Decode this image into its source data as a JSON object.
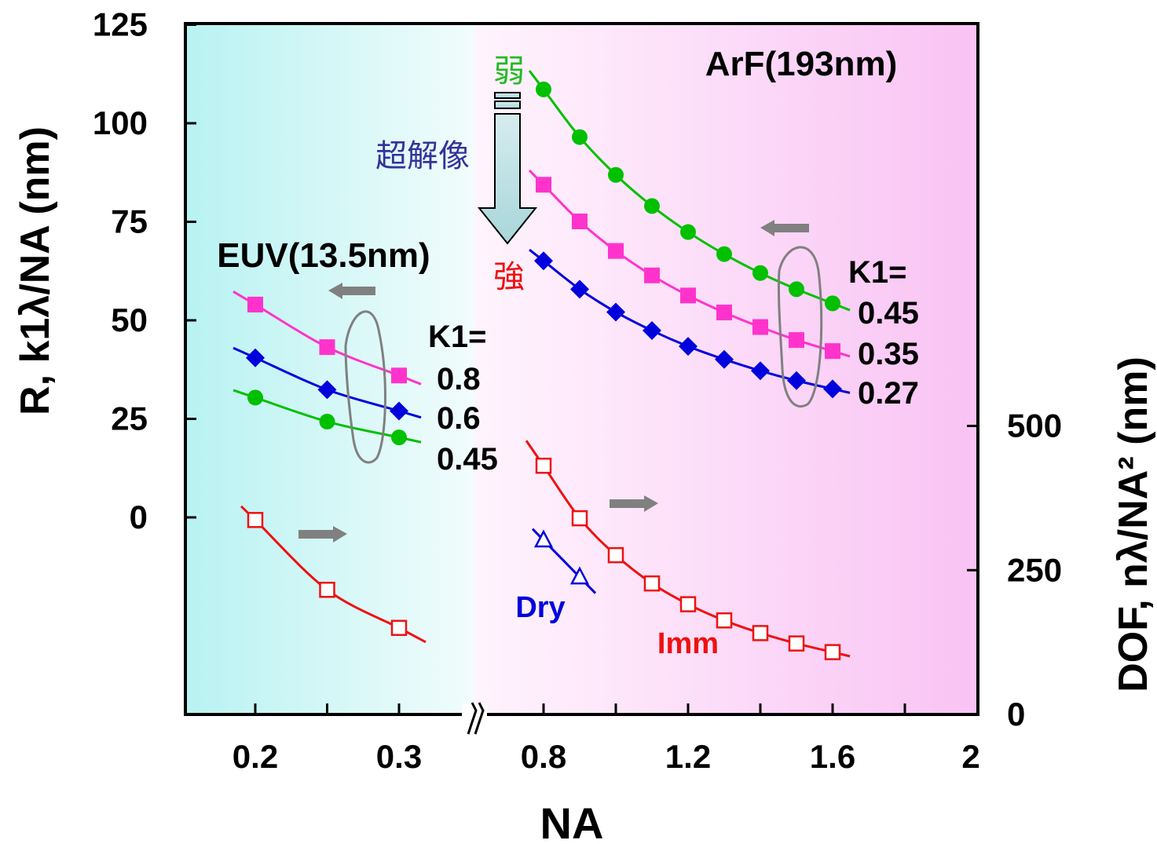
{
  "chart_data": {
    "type": "line",
    "xlabel": "NA",
    "ylabel_left": "R, k1λ/NA (nm)",
    "ylabel_right": "DOF, nλ/NA² (nm)",
    "x_ticks_left": [
      "0.2",
      "0.3"
    ],
    "x_ticks_right": [
      "0.8",
      "1.2",
      "1.6",
      "2"
    ],
    "y_ticks_left": [
      "125",
      "100",
      "75",
      "50",
      "25",
      "0"
    ],
    "y_ticks_right": [
      "500",
      "250",
      "0"
    ],
    "ylim_left": [
      -50,
      125
    ],
    "ylim_right": [
      0,
      500
    ],
    "axis_break": "between NA 0.35 and 0.75",
    "colors": {
      "euv_band": "#c8f5f5",
      "arf_band": "#f8c8f4",
      "green": "#00c000",
      "magenta": "#ff33cc",
      "blue": "#0000dd",
      "red": "#ee1111",
      "arrow_gray": "#808080",
      "label_blue": "#333399"
    },
    "euv": {
      "title": "EUV(13.5nm)",
      "k1_label": "K1=",
      "resolution_series": [
        {
          "name": "0.8",
          "color": "magenta",
          "marker": "square",
          "x": [
            0.2,
            0.25,
            0.3
          ],
          "y": [
            54,
            43.2,
            36
          ]
        },
        {
          "name": "0.6",
          "color": "blue",
          "marker": "diamond",
          "x": [
            0.2,
            0.25,
            0.3
          ],
          "y": [
            40.5,
            32.4,
            27
          ]
        },
        {
          "name": "0.45",
          "color": "green",
          "marker": "circle",
          "x": [
            0.2,
            0.25,
            0.3
          ],
          "y": [
            30.4,
            24.3,
            20.3
          ]
        }
      ],
      "dof_series": {
        "color": "red",
        "marker": "open-square",
        "x": [
          0.2,
          0.25,
          0.3
        ],
        "y": [
          337,
          216,
          150
        ]
      }
    },
    "arf": {
      "title": "ArF(193nm)",
      "k1_label": "K1=",
      "weak_label": "弱",
      "strong_label": "強",
      "super_resolution_label": "超解像",
      "resolution_series": [
        {
          "name": "0.45",
          "color": "green",
          "marker": "circle",
          "x": [
            0.8,
            0.9,
            1.0,
            1.1,
            1.2,
            1.3,
            1.4,
            1.5,
            1.6
          ],
          "y": [
            108.6,
            96.5,
            86.9,
            79.0,
            72.4,
            66.8,
            62.0,
            57.9,
            54.3
          ]
        },
        {
          "name": "0.35",
          "color": "magenta",
          "marker": "square",
          "x": [
            0.8,
            0.9,
            1.0,
            1.1,
            1.2,
            1.3,
            1.4,
            1.5,
            1.6
          ],
          "y": [
            84.4,
            75.1,
            67.6,
            61.4,
            56.3,
            52.0,
            48.3,
            45.0,
            42.2
          ]
        },
        {
          "name": "0.27",
          "color": "blue",
          "marker": "diamond",
          "x": [
            0.8,
            0.9,
            1.0,
            1.1,
            1.2,
            1.3,
            1.4,
            1.5,
            1.6
          ],
          "y": [
            65.1,
            57.9,
            52.1,
            47.4,
            43.4,
            40.1,
            37.2,
            34.7,
            32.6
          ]
        }
      ],
      "dof_imm": {
        "name": "Imm",
        "color": "red",
        "marker": "open-square",
        "x": [
          0.8,
          0.9,
          1.0,
          1.1,
          1.2,
          1.3,
          1.4,
          1.5,
          1.6
        ],
        "y": [
          431,
          340,
          276,
          227,
          191,
          163,
          141,
          123,
          108
        ]
      },
      "dof_dry": {
        "name": "Dry",
        "color": "blue",
        "marker": "open-triangle",
        "x": [
          0.8,
          0.9
        ],
        "y": [
          302,
          238
        ]
      }
    }
  }
}
